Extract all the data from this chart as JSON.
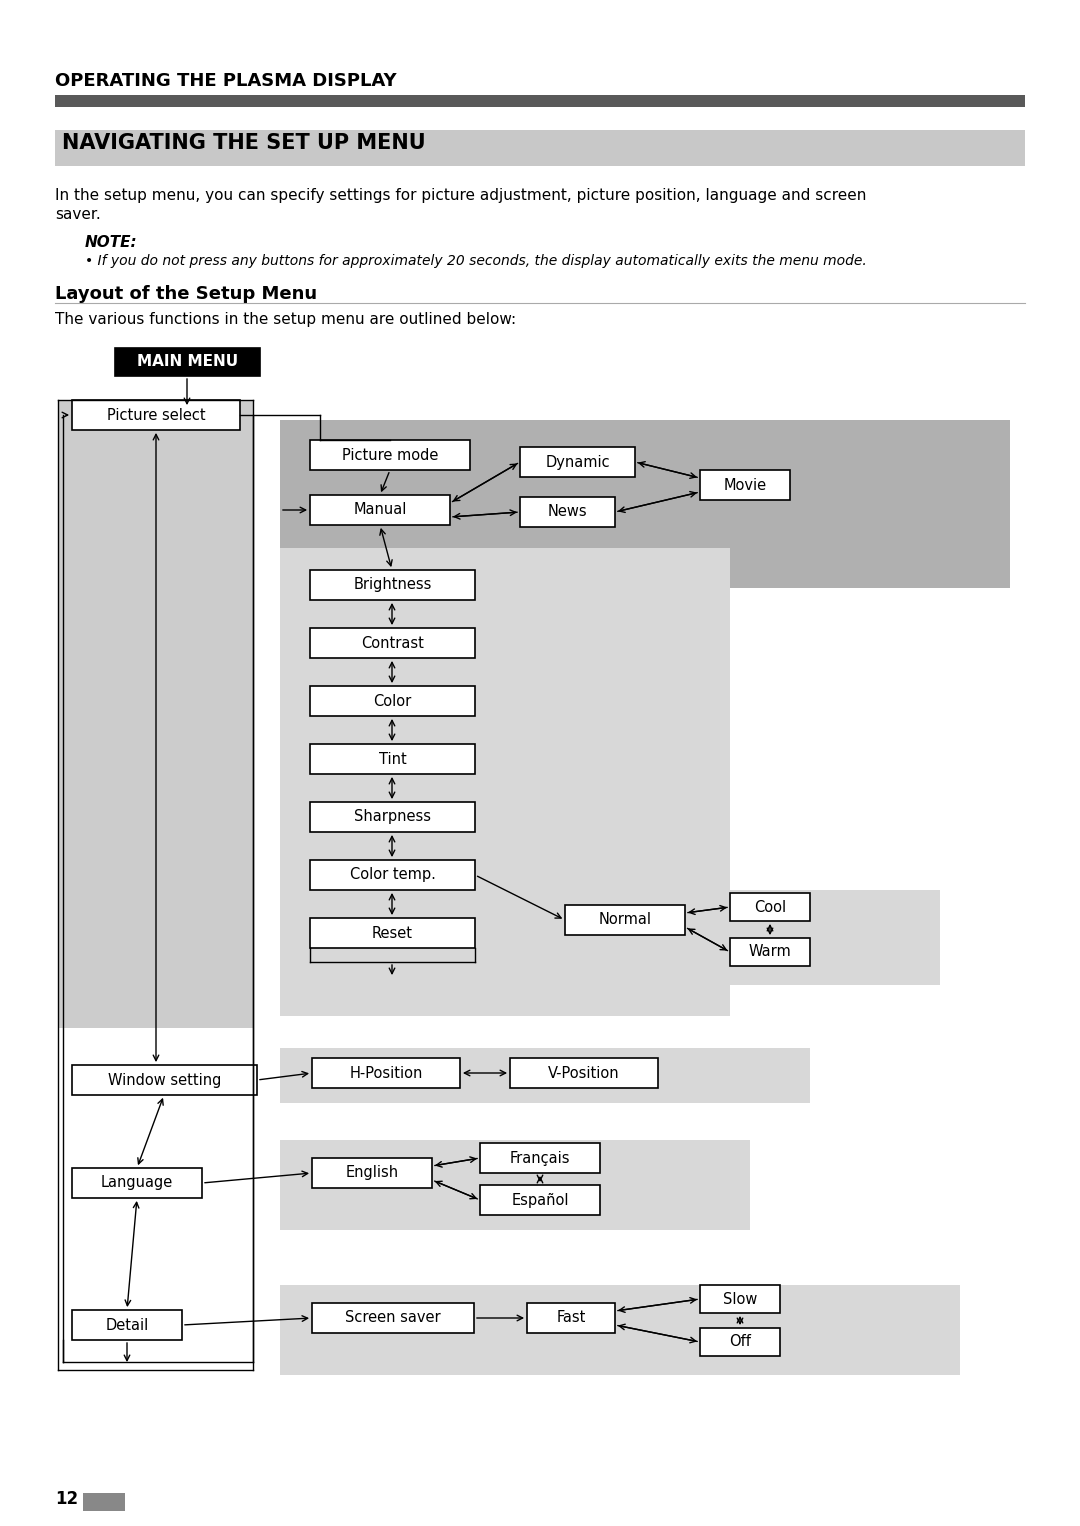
{
  "page_title": "OPERATING THE PLASMA DISPLAY",
  "section_title": "NAVIGATING THE SET UP MENU",
  "intro_text1": "In the setup menu, you can specify settings for picture adjustment, picture position, language and screen",
  "intro_text2": "saver.",
  "note_title": "NOTE:",
  "note_text": "• If you do not press any buttons for approximately 20 seconds, the display automatically exits the menu mode.",
  "subsection_title": "Layout of the Setup Menu",
  "subsection_intro": "The various functions in the setup menu are outlined below:",
  "main_menu_label": "MAIN MENU",
  "page_number": "12",
  "bg_color": "#ffffff",
  "dark_bar_color": "#595959",
  "light_bar_color": "#c8c8c8",
  "main_menu_bg": "#000000",
  "main_menu_fg": "#ffffff",
  "panel_bg_dark": "#b0b0b0",
  "panel_bg_mid": "#c8c8c8",
  "panel_bg_light": "#d8d8d8",
  "left_panel_bg": "#cccccc"
}
